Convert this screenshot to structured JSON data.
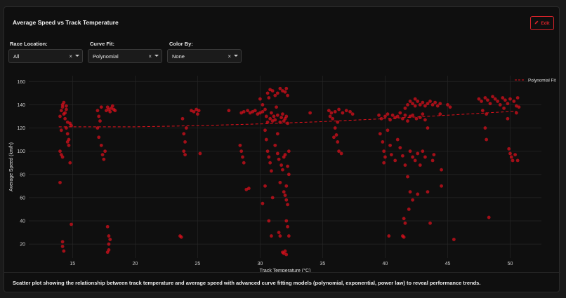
{
  "panel": {
    "title": "Average Speed vs Track Temperature",
    "edit_label": "Edit",
    "caption": "Scatter plot showing the relationship between track temperature and average speed with advanced curve fitting models (polynomial, exponential, power law) to reveal performance trends."
  },
  "filters": [
    {
      "label": "Race Location:",
      "value": "All"
    },
    {
      "label": "Curve Fit:",
      "value": "Polynomial"
    },
    {
      "label": "Color By:",
      "value": "None"
    }
  ],
  "colors": {
    "accent": "#d8232a",
    "point": "#e3101c",
    "background": "#0f0f0f"
  },
  "icons": {
    "edit": "pencil-icon",
    "clear": "clear-icon",
    "dropdown": "chevron-down-icon"
  },
  "chart_data": {
    "type": "scatter",
    "title": "",
    "xlabel": "Track Temperature (°C)",
    "ylabel": "Average Speed (km/h)",
    "xlim": [
      11.5,
      52.5
    ],
    "ylim": [
      8,
      165
    ],
    "xticks": [
      15,
      20,
      25,
      30,
      35,
      40,
      45,
      50
    ],
    "yticks": [
      20,
      40,
      60,
      80,
      100,
      120,
      140,
      160
    ],
    "grid": true,
    "legend": {
      "placement": "top-right",
      "entries": [
        "Polynomial Fit"
      ]
    },
    "fit": {
      "name": "Polynomial Fit",
      "x": [
        13.9,
        20,
        25,
        30,
        35,
        40,
        45,
        50.5
      ],
      "y": [
        121,
        121,
        122,
        123.5,
        125.5,
        128,
        131,
        134.5
      ]
    },
    "points": [
      [
        14.0,
        130
      ],
      [
        14.1,
        135
      ],
      [
        14.2,
        138
      ],
      [
        14.3,
        132
      ],
      [
        14.4,
        128
      ],
      [
        14.5,
        136
      ],
      [
        14.6,
        125
      ],
      [
        14.2,
        140
      ],
      [
        14.3,
        142
      ],
      [
        14.5,
        120
      ],
      [
        14.6,
        115
      ],
      [
        14.7,
        110
      ],
      [
        14.8,
        124
      ],
      [
        14.1,
        118
      ],
      [
        14.0,
        100
      ],
      [
        14.1,
        97
      ],
      [
        14.2,
        95
      ],
      [
        14.0,
        73
      ],
      [
        14.2,
        22
      ],
      [
        14.2,
        18
      ],
      [
        14.3,
        14
      ],
      [
        14.6,
        108
      ],
      [
        14.7,
        105
      ],
      [
        14.8,
        90
      ],
      [
        14.9,
        37
      ],
      [
        14.4,
        133
      ],
      [
        14.5,
        139
      ],
      [
        14.9,
        122
      ],
      [
        17.0,
        135
      ],
      [
        17.1,
        130
      ],
      [
        17.2,
        126
      ],
      [
        17.0,
        120
      ],
      [
        17.1,
        112
      ],
      [
        17.3,
        105
      ],
      [
        17.4,
        97
      ],
      [
        17.5,
        93
      ],
      [
        17.6,
        100
      ],
      [
        17.7,
        135
      ],
      [
        17.8,
        138
      ],
      [
        17.9,
        136
      ],
      [
        18.0,
        134
      ],
      [
        18.1,
        137
      ],
      [
        18.2,
        139
      ],
      [
        18.3,
        136
      ],
      [
        18.4,
        135
      ],
      [
        17.3,
        138
      ],
      [
        17.8,
        35
      ],
      [
        17.9,
        27
      ],
      [
        18.0,
        24
      ],
      [
        17.9,
        15
      ],
      [
        17.8,
        13
      ],
      [
        17.9,
        20
      ],
      [
        23.8,
        128
      ],
      [
        23.9,
        115
      ],
      [
        24.0,
        108
      ],
      [
        23.9,
        100
      ],
      [
        24.0,
        97
      ],
      [
        24.1,
        120
      ],
      [
        23.6,
        27
      ],
      [
        23.7,
        26
      ],
      [
        24.5,
        135
      ],
      [
        24.7,
        134
      ],
      [
        24.9,
        136
      ],
      [
        25.0,
        132
      ],
      [
        25.1,
        135
      ],
      [
        25.2,
        98
      ],
      [
        27.5,
        135
      ],
      [
        28.5,
        133
      ],
      [
        28.7,
        134
      ],
      [
        29.0,
        135
      ],
      [
        29.2,
        133
      ],
      [
        29.4,
        134
      ],
      [
        29.6,
        135
      ],
      [
        29.8,
        132
      ],
      [
        30.0,
        133
      ],
      [
        30.2,
        134
      ],
      [
        28.4,
        105
      ],
      [
        28.5,
        100
      ],
      [
        28.6,
        95
      ],
      [
        28.7,
        90
      ],
      [
        28.9,
        67
      ],
      [
        29.1,
        68
      ],
      [
        30.0,
        145
      ],
      [
        30.2,
        140
      ],
      [
        30.4,
        136
      ],
      [
        30.5,
        130
      ],
      [
        30.6,
        125
      ],
      [
        30.8,
        128
      ],
      [
        30.9,
        133
      ],
      [
        31.0,
        126
      ],
      [
        31.1,
        130
      ],
      [
        31.2,
        127
      ],
      [
        31.3,
        138
      ],
      [
        31.4,
        131
      ],
      [
        31.6,
        125
      ],
      [
        31.7,
        129
      ],
      [
        31.8,
        132
      ],
      [
        31.9,
        126
      ],
      [
        32.0,
        128
      ],
      [
        32.1,
        130
      ],
      [
        32.2,
        124
      ],
      [
        30.4,
        118
      ],
      [
        30.5,
        110
      ],
      [
        30.6,
        100
      ],
      [
        30.7,
        95
      ],
      [
        30.8,
        90
      ],
      [
        30.9,
        83
      ],
      [
        31.0,
        60
      ],
      [
        30.7,
        40
      ],
      [
        30.9,
        27
      ],
      [
        30.4,
        70
      ],
      [
        30.2,
        55
      ],
      [
        31.2,
        105
      ],
      [
        31.4,
        98
      ],
      [
        31.5,
        93
      ],
      [
        31.7,
        88
      ],
      [
        31.4,
        115
      ],
      [
        31.6,
        73
      ],
      [
        31.8,
        84
      ],
      [
        31.6,
        27
      ],
      [
        31.5,
        30
      ],
      [
        32.0,
        97
      ],
      [
        32.2,
        87
      ],
      [
        32.3,
        80
      ],
      [
        32.1,
        70
      ],
      [
        32.0,
        62
      ],
      [
        32.1,
        58
      ],
      [
        32.2,
        54
      ],
      [
        31.9,
        65
      ],
      [
        32.3,
        27
      ],
      [
        32.2,
        35
      ],
      [
        32.1,
        40
      ],
      [
        31.8,
        13
      ],
      [
        31.9,
        12
      ],
      [
        32.0,
        14
      ],
      [
        32.1,
        11
      ],
      [
        31.9,
        95
      ],
      [
        32.3,
        100
      ],
      [
        30.6,
        150
      ],
      [
        30.8,
        153
      ],
      [
        31.0,
        152
      ],
      [
        31.2,
        148
      ],
      [
        31.4,
        150
      ],
      [
        31.6,
        154
      ],
      [
        31.8,
        152
      ],
      [
        32.0,
        151
      ],
      [
        32.2,
        148
      ],
      [
        30.7,
        146
      ],
      [
        32.1,
        154
      ],
      [
        34.0,
        133
      ],
      [
        35.5,
        135
      ],
      [
        35.6,
        130
      ],
      [
        35.7,
        133
      ],
      [
        36.0,
        134
      ],
      [
        36.3,
        136
      ],
      [
        36.6,
        133
      ],
      [
        36.9,
        135
      ],
      [
        37.2,
        134
      ],
      [
        37.4,
        132
      ],
      [
        35.8,
        128
      ],
      [
        36.0,
        120
      ],
      [
        36.1,
        114
      ],
      [
        36.2,
        108
      ],
      [
        35.9,
        112
      ],
      [
        36.3,
        100
      ],
      [
        36.5,
        98
      ],
      [
        36.2,
        125
      ],
      [
        39.5,
        131
      ],
      [
        39.7,
        128
      ],
      [
        40.0,
        130
      ],
      [
        40.2,
        132
      ],
      [
        40.4,
        127
      ],
      [
        40.6,
        131
      ],
      [
        40.8,
        129
      ],
      [
        41.0,
        130
      ],
      [
        41.2,
        133
      ],
      [
        41.4,
        128
      ],
      [
        41.6,
        131
      ],
      [
        41.8,
        126
      ],
      [
        42.0,
        130
      ],
      [
        42.2,
        131
      ],
      [
        42.5,
        128
      ],
      [
        42.8,
        129
      ],
      [
        43.0,
        132
      ],
      [
        43.2,
        127
      ],
      [
        39.6,
        115
      ],
      [
        39.8,
        108
      ],
      [
        39.9,
        100
      ],
      [
        40.0,
        95
      ],
      [
        39.9,
        90
      ],
      [
        40.2,
        118
      ],
      [
        40.4,
        105
      ],
      [
        40.5,
        97
      ],
      [
        40.8,
        92
      ],
      [
        41.0,
        110
      ],
      [
        41.2,
        103
      ],
      [
        41.4,
        96
      ],
      [
        41.6,
        88
      ],
      [
        41.8,
        78
      ],
      [
        42.0,
        65
      ],
      [
        42.2,
        58
      ],
      [
        41.5,
        42
      ],
      [
        41.6,
        38
      ],
      [
        41.9,
        50
      ],
      [
        40.3,
        27
      ],
      [
        41.4,
        27
      ],
      [
        41.5,
        26
      ],
      [
        42.0,
        100
      ],
      [
        42.2,
        95
      ],
      [
        42.4,
        92
      ],
      [
        42.6,
        98
      ],
      [
        42.8,
        88
      ],
      [
        43.0,
        100
      ],
      [
        43.2,
        95
      ],
      [
        43.4,
        120
      ],
      [
        42.6,
        63
      ],
      [
        43.6,
        38
      ],
      [
        43.4,
        65
      ],
      [
        43.9,
        97
      ],
      [
        43.8,
        92
      ],
      [
        44.4,
        132
      ],
      [
        44.5,
        84
      ],
      [
        44.5,
        70
      ],
      [
        45.2,
        138
      ],
      [
        45.5,
        24
      ],
      [
        41.8,
        140
      ],
      [
        42.0,
        143
      ],
      [
        42.2,
        141
      ],
      [
        42.4,
        139
      ],
      [
        42.6,
        143
      ],
      [
        42.8,
        140
      ],
      [
        43.0,
        142
      ],
      [
        43.2,
        139
      ],
      [
        43.4,
        141
      ],
      [
        43.6,
        143
      ],
      [
        43.8,
        140
      ],
      [
        44.0,
        142
      ],
      [
        44.2,
        139
      ],
      [
        44.4,
        141
      ],
      [
        45.0,
        140
      ],
      [
        41.6,
        137
      ],
      [
        42.4,
        145
      ],
      [
        47.5,
        145
      ],
      [
        47.7,
        143
      ],
      [
        48.0,
        146
      ],
      [
        48.2,
        144
      ],
      [
        48.4,
        141
      ],
      [
        48.6,
        147
      ],
      [
        48.8,
        145
      ],
      [
        49.0,
        143
      ],
      [
        49.2,
        140
      ],
      [
        49.4,
        146
      ],
      [
        49.6,
        144
      ],
      [
        49.8,
        141
      ],
      [
        50.0,
        145
      ],
      [
        50.3,
        143
      ],
      [
        50.5,
        139
      ],
      [
        50.6,
        146
      ],
      [
        50.7,
        138
      ],
      [
        47.8,
        135
      ],
      [
        48.1,
        132
      ],
      [
        49.5,
        137
      ],
      [
        49.8,
        128
      ],
      [
        48.0,
        120
      ],
      [
        48.1,
        110
      ],
      [
        50.0,
        98
      ],
      [
        50.1,
        95
      ],
      [
        49.9,
        102
      ],
      [
        50.2,
        92
      ],
      [
        50.4,
        97
      ],
      [
        50.6,
        92
      ],
      [
        48.3,
        43
      ],
      [
        50.5,
        133
      ]
    ]
  }
}
